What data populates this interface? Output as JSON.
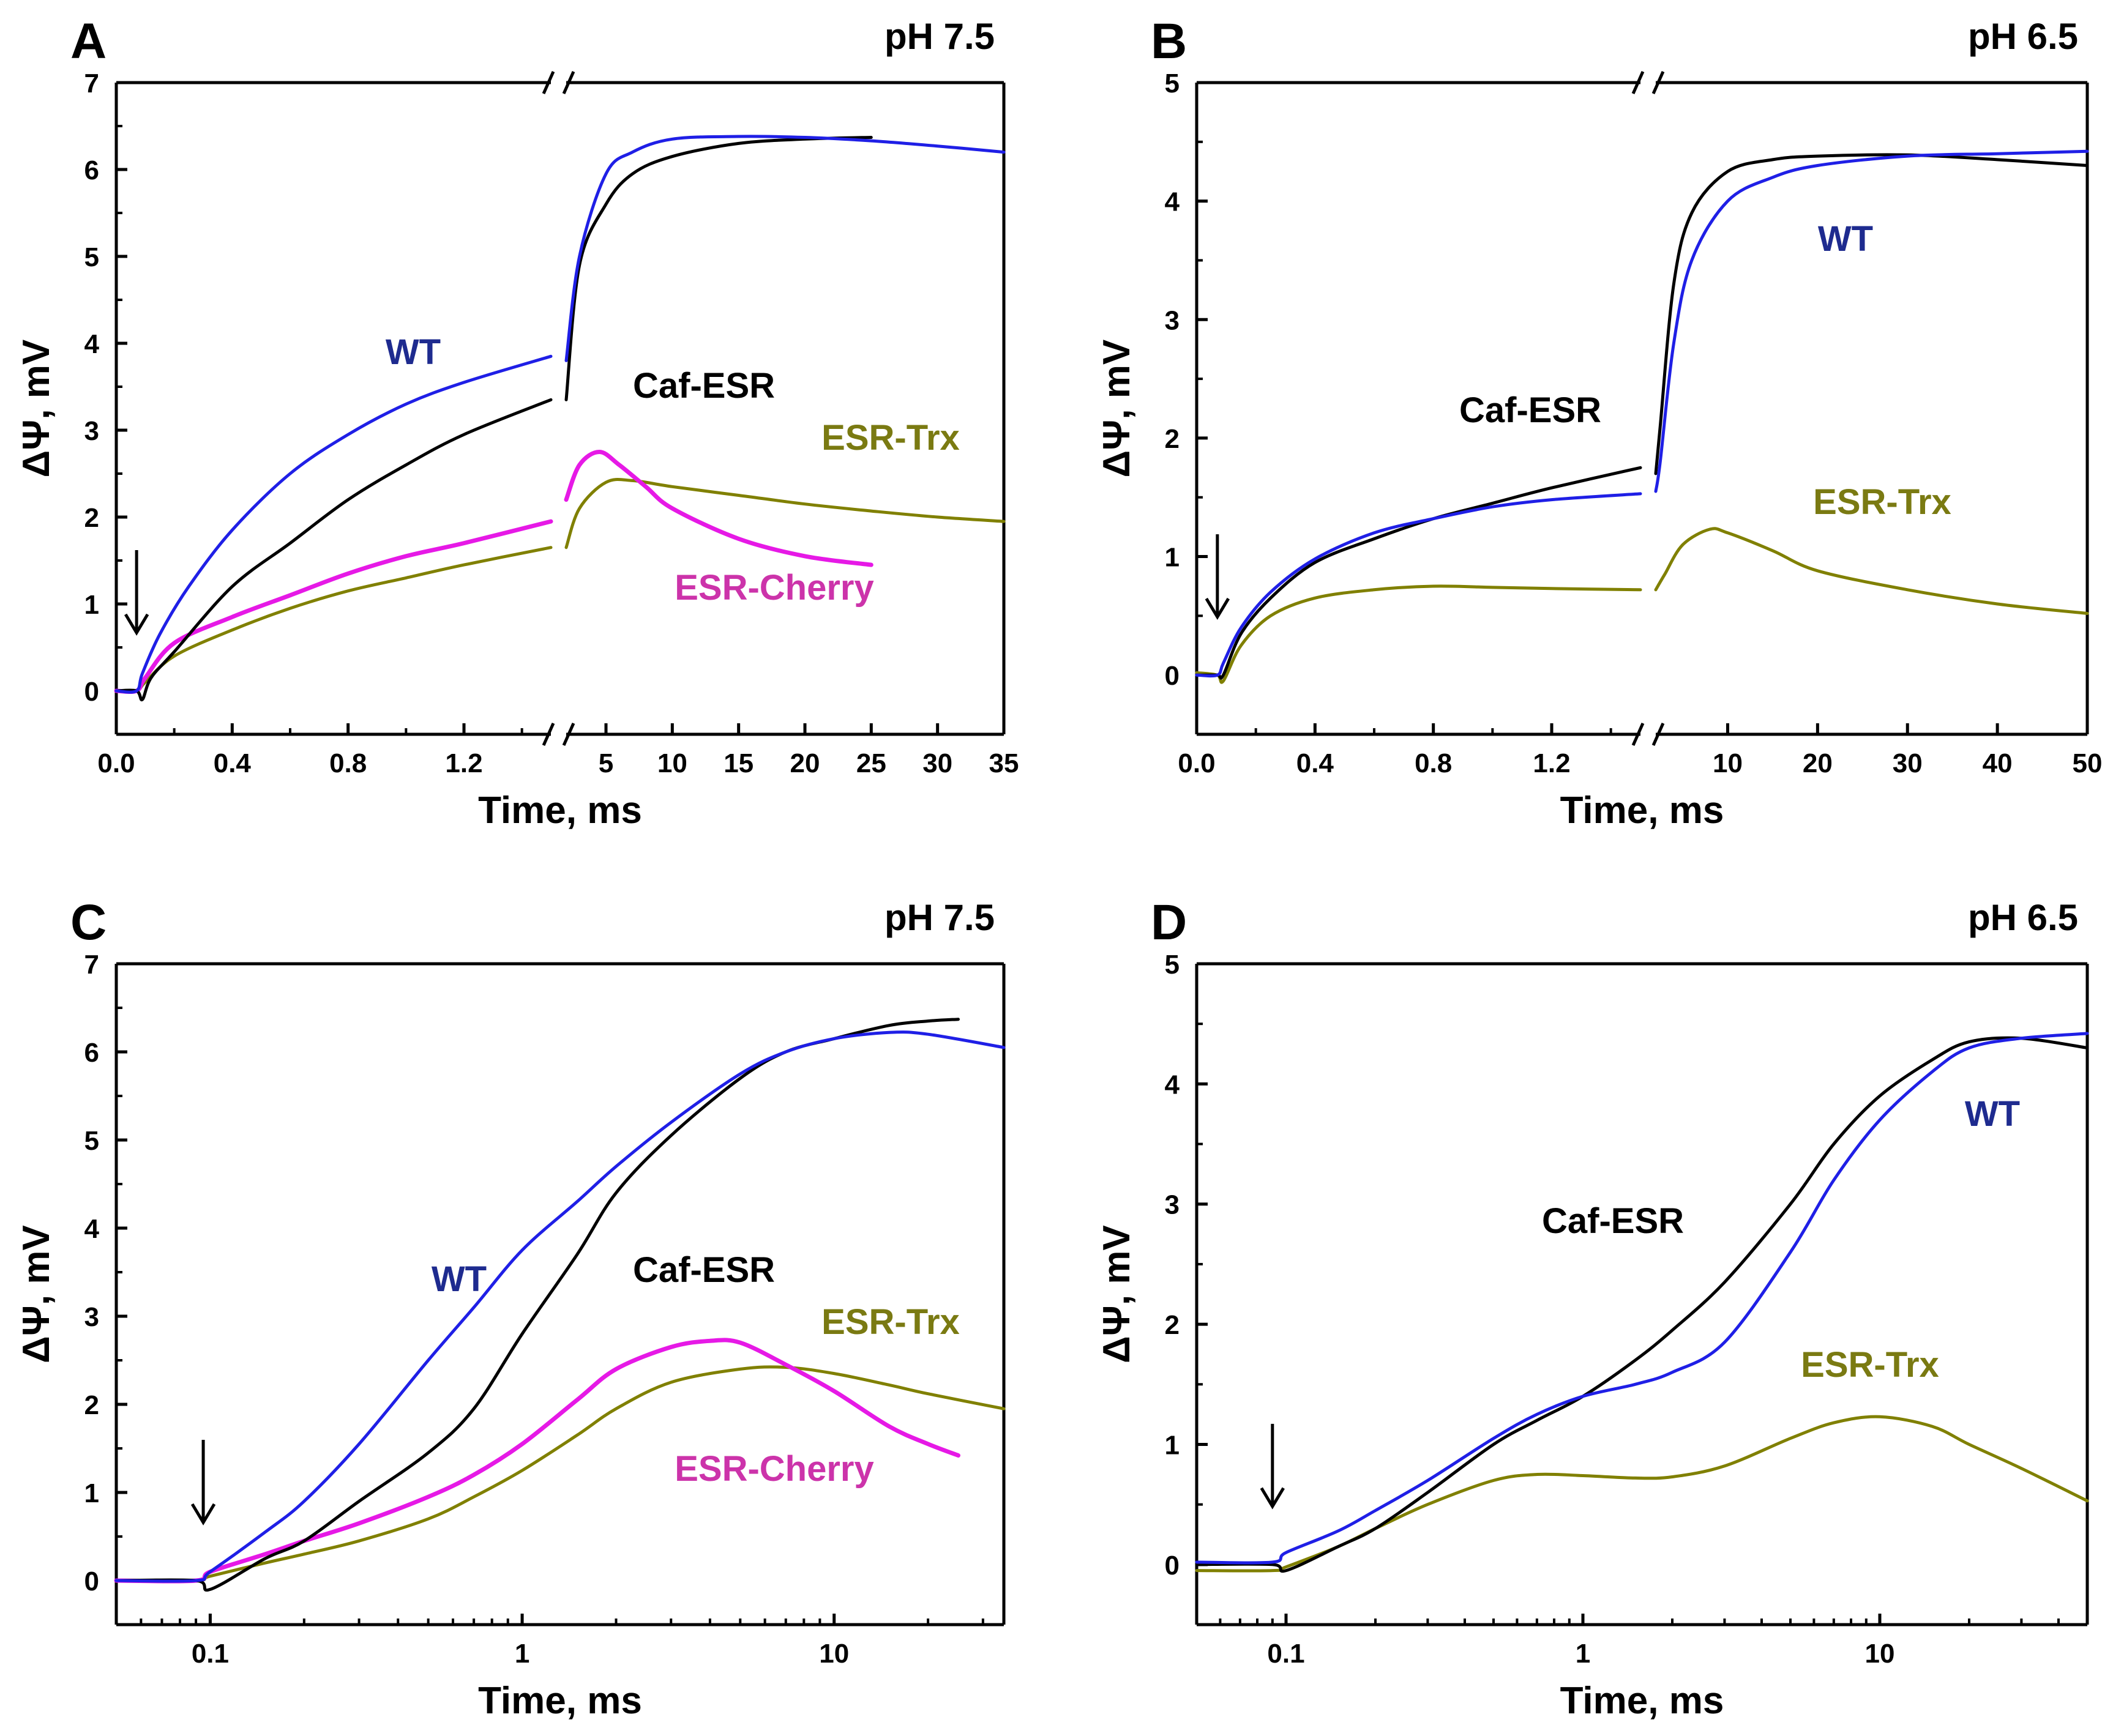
{
  "colors": {
    "wt": "#1f1fe6",
    "caf_esr": "#000000",
    "esr_trx": "#808000",
    "esr_cherry": "#e619e6",
    "wt_label": "#1e2b8f",
    "trx_label": "#7a7a12",
    "cherry_label": "#cc33aa"
  },
  "panels": [
    {
      "letter": "A",
      "ph": "pH 7.5",
      "xlabel": "Time, ms",
      "ylabel": "ΔΨ, mV",
      "ylim": [
        -0.5,
        7
      ],
      "yticks": [
        "0",
        "1",
        "2",
        "3",
        "4",
        "5",
        "6",
        "7"
      ],
      "axis": "broken",
      "left_range": [
        0,
        1.5
      ],
      "left_ticks": [
        "0.0",
        "0.4",
        "0.8",
        "1.2"
      ],
      "right_range": [
        2,
        35
      ],
      "right_ticks": [
        "5",
        "10",
        "15",
        "20",
        "25",
        "30",
        "35"
      ],
      "arrow_x": 0.07,
      "labels": [
        {
          "text": "WT",
          "series": "wt"
        },
        {
          "text": "Caf-ESR",
          "series": "caf_esr"
        },
        {
          "text": "ESR-Trx",
          "series": "esr_trx"
        },
        {
          "text": "ESR-Cherry",
          "series": "esr_cherry"
        }
      ]
    },
    {
      "letter": "B",
      "ph": "pH 6.5",
      "xlabel": "Time, ms",
      "ylabel": "ΔΨ, mV",
      "ylim": [
        -0.5,
        5
      ],
      "yticks": [
        "0",
        "1",
        "2",
        "3",
        "4",
        "5"
      ],
      "axis": "broken",
      "left_range": [
        0,
        1.5
      ],
      "left_ticks": [
        "0.0",
        "0.4",
        "0.8",
        "1.2"
      ],
      "right_range": [
        2,
        50
      ],
      "right_ticks": [
        "10",
        "20",
        "30",
        "40",
        "50"
      ],
      "arrow_x": 0.07,
      "labels": [
        {
          "text": "WT",
          "series": "wt"
        },
        {
          "text": "Caf-ESR",
          "series": "caf_esr"
        },
        {
          "text": "ESR-Trx",
          "series": "esr_trx"
        }
      ]
    },
    {
      "letter": "C",
      "ph": "pH 7.5",
      "xlabel": "Time, ms",
      "ylabel": "ΔΨ, mV",
      "ylim": [
        -0.5,
        7
      ],
      "yticks": [
        "0",
        "1",
        "2",
        "3",
        "4",
        "5",
        "6",
        "7"
      ],
      "axis": "log",
      "xlim": [
        0.05,
        35
      ],
      "xticks": [
        "0.1",
        "1",
        "10"
      ],
      "arrow_x": 0.095,
      "labels": [
        {
          "text": "WT",
          "series": "wt"
        },
        {
          "text": "Caf-ESR",
          "series": "caf_esr"
        },
        {
          "text": "ESR-Trx",
          "series": "esr_trx"
        },
        {
          "text": "ESR-Cherry",
          "series": "esr_cherry"
        }
      ]
    },
    {
      "letter": "D",
      "ph": "pH 6.5",
      "xlabel": "Time, ms",
      "ylabel": "ΔΨ, mV",
      "ylim": [
        -0.5,
        5
      ],
      "yticks": [
        "0",
        "1",
        "2",
        "3",
        "4",
        "5"
      ],
      "axis": "log",
      "xlim": [
        0.05,
        50
      ],
      "xticks": [
        "0.1",
        "1",
        "10"
      ],
      "arrow_x": 0.09,
      "labels": [
        {
          "text": "WT",
          "series": "wt"
        },
        {
          "text": "Caf-ESR",
          "series": "caf_esr"
        },
        {
          "text": "ESR-Trx",
          "series": "esr_trx"
        }
      ]
    }
  ],
  "chart_data": [
    {
      "type": "line",
      "panel": "A",
      "title": "pH 7.5",
      "xlabel": "Time, ms",
      "ylabel": "ΔΨ, mV",
      "xaxis": "broken linear: 0–1.5 ms and 2–35 ms",
      "ylim": [
        -0.5,
        7
      ],
      "series": [
        {
          "name": "WT",
          "x": [
            0,
            0.07,
            0.09,
            0.15,
            0.25,
            0.4,
            0.6,
            0.8,
            1.0,
            1.2,
            1.5,
            2,
            3,
            5,
            7,
            10,
            15,
            20,
            25,
            30,
            35
          ],
          "y": [
            0,
            0,
            0.2,
            0.65,
            1.2,
            1.85,
            2.5,
            2.95,
            3.3,
            3.55,
            3.85,
            3.8,
            5.0,
            5.95,
            6.2,
            6.35,
            6.38,
            6.37,
            6.33,
            6.27,
            6.2
          ]
        },
        {
          "name": "Caf-ESR",
          "x": [
            0,
            0.07,
            0.09,
            0.12,
            0.2,
            0.4,
            0.6,
            0.8,
            1.0,
            1.2,
            1.5,
            2,
            3,
            5,
            7,
            10,
            15,
            20,
            25
          ],
          "y": [
            0,
            0,
            -0.1,
            0.15,
            0.45,
            1.2,
            1.7,
            2.2,
            2.6,
            2.95,
            3.35,
            3.35,
            4.9,
            5.6,
            5.95,
            6.15,
            6.3,
            6.35,
            6.37
          ]
        },
        {
          "name": "ESR-Cherry",
          "x": [
            0,
            0.07,
            0.1,
            0.2,
            0.4,
            0.6,
            0.8,
            1.0,
            1.2,
            1.5,
            2,
            3,
            4.5,
            6,
            8,
            10,
            15,
            20,
            25
          ],
          "y": [
            0,
            0,
            0.15,
            0.55,
            0.85,
            1.1,
            1.35,
            1.55,
            1.7,
            1.95,
            2.2,
            2.6,
            2.75,
            2.6,
            2.35,
            2.1,
            1.75,
            1.55,
            1.45
          ]
        },
        {
          "name": "ESR-Trx",
          "x": [
            0,
            0.07,
            0.1,
            0.2,
            0.4,
            0.6,
            0.8,
            1.0,
            1.2,
            1.5,
            2,
            3,
            5,
            7,
            10,
            15,
            20,
            25,
            30,
            35
          ],
          "y": [
            0,
            0,
            0.1,
            0.4,
            0.7,
            0.95,
            1.15,
            1.3,
            1.45,
            1.65,
            1.65,
            2.1,
            2.4,
            2.42,
            2.35,
            2.25,
            2.15,
            2.07,
            2.0,
            1.95
          ]
        }
      ]
    },
    {
      "type": "line",
      "panel": "B",
      "title": "pH 6.5",
      "xlabel": "Time, ms",
      "ylabel": "ΔΨ, mV",
      "xaxis": "broken linear: 0–1.5 ms and 2–50 ms",
      "ylim": [
        -0.5,
        5
      ],
      "series": [
        {
          "name": "WT",
          "x": [
            0,
            0.07,
            0.09,
            0.15,
            0.25,
            0.4,
            0.6,
            0.8,
            1.0,
            1.2,
            1.5,
            2,
            2.5,
            4,
            6,
            10,
            15,
            20,
            30,
            40,
            50
          ],
          "y": [
            0,
            0,
            0.1,
            0.4,
            0.7,
            0.98,
            1.2,
            1.32,
            1.42,
            1.48,
            1.53,
            1.55,
            1.8,
            2.8,
            3.5,
            4.0,
            4.2,
            4.3,
            4.38,
            4.4,
            4.42
          ]
        },
        {
          "name": "Caf-ESR",
          "x": [
            0,
            0.07,
            0.09,
            0.15,
            0.25,
            0.4,
            0.6,
            0.8,
            1.0,
            1.2,
            1.5,
            2,
            2.5,
            4,
            6,
            10,
            15,
            20,
            30,
            40,
            50
          ],
          "y": [
            0,
            0,
            0,
            0.35,
            0.65,
            0.95,
            1.15,
            1.32,
            1.45,
            1.58,
            1.75,
            1.7,
            2.1,
            3.3,
            3.9,
            4.25,
            4.35,
            4.38,
            4.39,
            4.35,
            4.3
          ]
        },
        {
          "name": "ESR-Trx",
          "x": [
            0,
            0.07,
            0.09,
            0.15,
            0.25,
            0.4,
            0.6,
            0.8,
            1.0,
            1.2,
            1.5,
            2,
            3,
            5,
            8,
            10,
            15,
            20,
            30,
            40,
            50
          ],
          "y": [
            0.02,
            0,
            -0.05,
            0.25,
            0.5,
            0.65,
            0.72,
            0.75,
            0.74,
            0.73,
            0.72,
            0.72,
            0.85,
            1.1,
            1.23,
            1.2,
            1.05,
            0.88,
            0.72,
            0.6,
            0.52
          ]
        }
      ]
    },
    {
      "type": "line",
      "panel": "C",
      "title": "pH 7.5",
      "xlabel": "Time, ms",
      "ylabel": "ΔΨ, mV",
      "xaxis": "log: 0.05–35 ms",
      "ylim": [
        -0.5,
        7
      ],
      "series": [
        {
          "name": "WT",
          "x": [
            0.05,
            0.09,
            0.1,
            0.15,
            0.2,
            0.3,
            0.5,
            0.7,
            1,
            1.5,
            2,
            3,
            5,
            7,
            10,
            15,
            20,
            35
          ],
          "y": [
            0,
            0,
            0.1,
            0.55,
            0.9,
            1.55,
            2.5,
            3.1,
            3.75,
            4.3,
            4.7,
            5.2,
            5.75,
            6.0,
            6.15,
            6.22,
            6.2,
            6.05
          ]
        },
        {
          "name": "Caf-ESR",
          "x": [
            0.05,
            0.09,
            0.1,
            0.15,
            0.2,
            0.3,
            0.5,
            0.7,
            1,
            1.5,
            2,
            3,
            5,
            7,
            10,
            15,
            20,
            25
          ],
          "y": [
            0,
            0,
            -0.1,
            0.25,
            0.45,
            0.9,
            1.45,
            1.95,
            2.8,
            3.7,
            4.4,
            5.05,
            5.7,
            6.0,
            6.15,
            6.3,
            6.35,
            6.37
          ]
        },
        {
          "name": "ESR-Cherry",
          "x": [
            0.05,
            0.09,
            0.1,
            0.15,
            0.2,
            0.3,
            0.5,
            0.7,
            1,
            1.5,
            2,
            3,
            4,
            5,
            7,
            10,
            15,
            20,
            25
          ],
          "y": [
            0,
            0,
            0.1,
            0.3,
            0.45,
            0.65,
            0.95,
            1.2,
            1.55,
            2.05,
            2.4,
            2.65,
            2.72,
            2.7,
            2.45,
            2.15,
            1.75,
            1.55,
            1.42
          ]
        },
        {
          "name": "ESR-Trx",
          "x": [
            0.05,
            0.09,
            0.1,
            0.15,
            0.2,
            0.3,
            0.5,
            0.7,
            1,
            1.5,
            2,
            3,
            5,
            7,
            10,
            15,
            20,
            35
          ],
          "y": [
            0,
            0,
            0.05,
            0.2,
            0.3,
            0.45,
            0.7,
            0.95,
            1.25,
            1.65,
            1.95,
            2.25,
            2.4,
            2.42,
            2.35,
            2.22,
            2.12,
            1.95
          ]
        }
      ]
    },
    {
      "type": "line",
      "panel": "D",
      "title": "pH 6.5",
      "xlabel": "Time, ms",
      "ylabel": "ΔΨ, mV",
      "xaxis": "log: 0.05–50 ms",
      "ylim": [
        -0.5,
        5
      ],
      "series": [
        {
          "name": "WT",
          "x": [
            0.05,
            0.09,
            0.1,
            0.15,
            0.2,
            0.3,
            0.5,
            0.7,
            1,
            1.5,
            2,
            3,
            5,
            7,
            10,
            15,
            20,
            30,
            50
          ],
          "y": [
            0.02,
            0.02,
            0.1,
            0.28,
            0.45,
            0.7,
            1.05,
            1.25,
            1.4,
            1.5,
            1.6,
            1.85,
            2.6,
            3.2,
            3.7,
            4.1,
            4.3,
            4.38,
            4.42
          ]
        },
        {
          "name": "Caf-ESR",
          "x": [
            0.05,
            0.09,
            0.1,
            0.15,
            0.2,
            0.3,
            0.5,
            0.7,
            1,
            1.5,
            2,
            3,
            5,
            7,
            10,
            15,
            20,
            30,
            50
          ],
          "y": [
            0,
            0,
            -0.05,
            0.15,
            0.3,
            0.6,
            1.0,
            1.2,
            1.4,
            1.7,
            1.95,
            2.35,
            3.0,
            3.5,
            3.9,
            4.2,
            4.35,
            4.38,
            4.3
          ]
        },
        {
          "name": "ESR-Trx",
          "x": [
            0.05,
            0.09,
            0.1,
            0.15,
            0.2,
            0.3,
            0.5,
            0.7,
            1,
            1.5,
            2,
            3,
            5,
            7,
            10,
            15,
            20,
            30,
            50
          ],
          "y": [
            -0.05,
            -0.05,
            -0.02,
            0.15,
            0.3,
            0.5,
            0.7,
            0.75,
            0.74,
            0.72,
            0.73,
            0.82,
            1.05,
            1.18,
            1.23,
            1.15,
            1.0,
            0.8,
            0.53
          ]
        }
      ]
    }
  ]
}
